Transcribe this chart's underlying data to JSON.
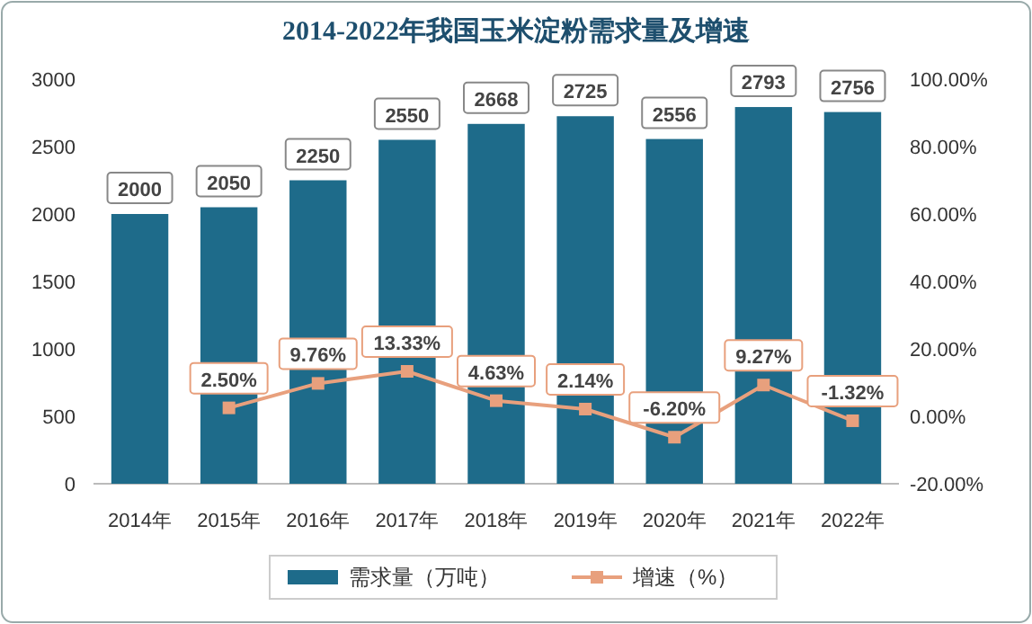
{
  "chart_data": {
    "type": "bar",
    "title": "2014-2022年我国玉米淀粉需求量及增速",
    "categories": [
      "2014年",
      "2015年",
      "2016年",
      "2017年",
      "2018年",
      "2019年",
      "2020年",
      "2021年",
      "2022年"
    ],
    "series": [
      {
        "name": "需求量（万吨）",
        "color": "#1e6b8a",
        "values": [
          2000,
          2050,
          2250,
          2550,
          2668,
          2725,
          2556,
          2793,
          2756
        ],
        "value_labels": [
          "2000",
          "2050",
          "2250",
          "2550",
          "2668",
          "2725",
          "2556",
          "2793",
          "2756"
        ]
      },
      {
        "name": "增速（%）",
        "type": "line",
        "axis": "y2",
        "color": "#e8a07d",
        "marker": "square",
        "values": [
          null,
          2.5,
          9.76,
          13.33,
          4.63,
          2.14,
          -6.2,
          9.27,
          -1.32
        ],
        "value_labels": [
          null,
          "2.50%",
          "9.76%",
          "13.33%",
          "4.63%",
          "2.14%",
          "-6.20%",
          "9.27%",
          "-1.32%"
        ]
      }
    ],
    "ylim": [
      0,
      3000
    ],
    "yticks": [
      0,
      500,
      1000,
      1500,
      2000,
      2500,
      3000
    ],
    "y2lim": [
      -20,
      100
    ],
    "y2ticks": [
      {
        "value": -20,
        "label": "-20.00%"
      },
      {
        "value": 0,
        "label": "0.00%"
      },
      {
        "value": 20,
        "label": "20.00%"
      },
      {
        "value": 40,
        "label": "40.00%"
      },
      {
        "value": 60,
        "label": "60.00%"
      },
      {
        "value": 80,
        "label": "80.00%"
      },
      {
        "value": 100,
        "label": "100.00%"
      }
    ],
    "grid": false,
    "legend": "bottom"
  }
}
